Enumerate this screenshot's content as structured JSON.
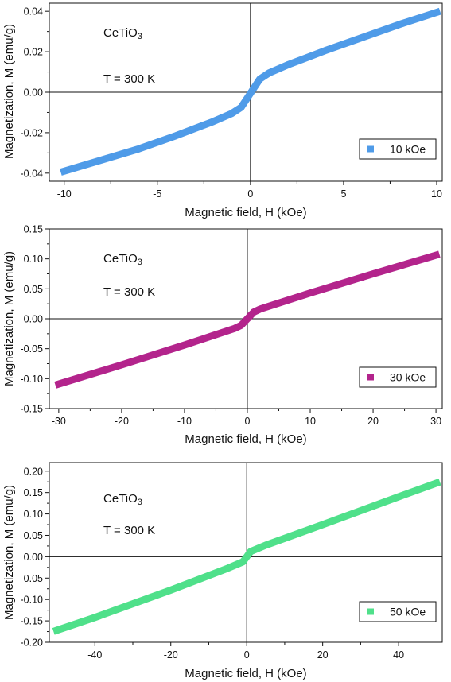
{
  "chart_data": [
    {
      "type": "line",
      "xlabel": "Magnetic field, H (kOe)",
      "ylabel": "Magnetization, M (emu/g)",
      "annotation_material": "CeTiO",
      "annotation_material_subscript": "3",
      "annotation_temperature": "T = 300 K",
      "xlim": [
        -10.8,
        10.3
      ],
      "ylim": [
        -0.044,
        0.044
      ],
      "xticks": [
        -10,
        -5,
        0,
        5,
        10
      ],
      "xtick_labels": [
        "-10",
        "-5",
        "0",
        "5",
        "10"
      ],
      "yticks": [
        -0.04,
        -0.02,
        0.0,
        0.02,
        0.04
      ],
      "ytick_labels": [
        "-0.04",
        "-0.02",
        "0.00",
        "0.02",
        "0.04"
      ],
      "legend_position": "bottom-right",
      "series": [
        {
          "name": "10 kOe",
          "color": "#4f9be8",
          "x": [
            -10,
            -8,
            -6,
            -4,
            -2,
            -1,
            -0.5,
            0,
            0.5,
            1,
            2,
            4,
            6,
            8,
            10
          ],
          "y": [
            -0.039,
            -0.0335,
            -0.028,
            -0.0215,
            -0.0145,
            -0.0105,
            -0.0075,
            -0.0005,
            0.0065,
            0.0095,
            0.0135,
            0.0205,
            0.027,
            0.0335,
            0.0395
          ]
        }
      ]
    },
    {
      "type": "line",
      "xlabel": "Magnetic field, H (kOe)",
      "ylabel": "Magnetization, M (emu/g)",
      "annotation_material": "CeTiO",
      "annotation_material_subscript": "3",
      "annotation_temperature": "T = 300 K",
      "xlim": [
        -31.5,
        31.0
      ],
      "ylim": [
        -0.15,
        0.15
      ],
      "xticks": [
        -30,
        -20,
        -10,
        0,
        10,
        20,
        30
      ],
      "xtick_labels": [
        "-30",
        "-20",
        "-10",
        "0",
        "10",
        "20",
        "30"
      ],
      "yticks": [
        -0.15,
        -0.1,
        -0.05,
        0.0,
        0.05,
        0.1,
        0.15
      ],
      "ytick_labels": [
        "-0.15",
        "-0.10",
        "-0.05",
        "0.00",
        "0.05",
        "0.10",
        "0.15"
      ],
      "legend_position": "bottom-right",
      "series": [
        {
          "name": "30 kOe",
          "color": "#b3248c",
          "x": [
            -30,
            -20,
            -10,
            -2,
            -1,
            0,
            1,
            2,
            10,
            20,
            30
          ],
          "y": [
            -0.109,
            -0.077,
            -0.044,
            -0.016,
            -0.011,
            0.0,
            0.011,
            0.016,
            0.043,
            0.075,
            0.106
          ]
        }
      ]
    },
    {
      "type": "line",
      "xlabel": "Magnetic field, H (kOe)",
      "ylabel": "Magnetization, M (emu/g)",
      "annotation_material": "CeTiO",
      "annotation_material_subscript": "3",
      "annotation_temperature": "T = 300 K",
      "xlim": [
        -52.0,
        51.5
      ],
      "ylim": [
        -0.2,
        0.22
      ],
      "xticks": [
        -40,
        -20,
        0,
        20,
        40
      ],
      "xtick_labels": [
        "-40",
        "-20",
        "0",
        "20",
        "40"
      ],
      "yticks": [
        -0.2,
        -0.15,
        -0.1,
        -0.05,
        0.0,
        0.05,
        0.1,
        0.15,
        0.2
      ],
      "ytick_labels": [
        "-0.20",
        "-0.15",
        "-0.10",
        "-0.05",
        "0.00",
        "0.05",
        "0.10",
        "0.15",
        "0.20"
      ],
      "legend_position": "bottom-right",
      "series": [
        {
          "name": "50 kOe",
          "color": "#4fe08a",
          "x": [
            -50,
            -40,
            -20,
            -5,
            -1,
            0,
            1,
            5,
            20,
            40,
            50
          ],
          "y": [
            -0.172,
            -0.142,
            -0.078,
            -0.027,
            -0.012,
            0.0,
            0.012,
            0.027,
            0.075,
            0.14,
            0.172
          ]
        }
      ]
    }
  ]
}
